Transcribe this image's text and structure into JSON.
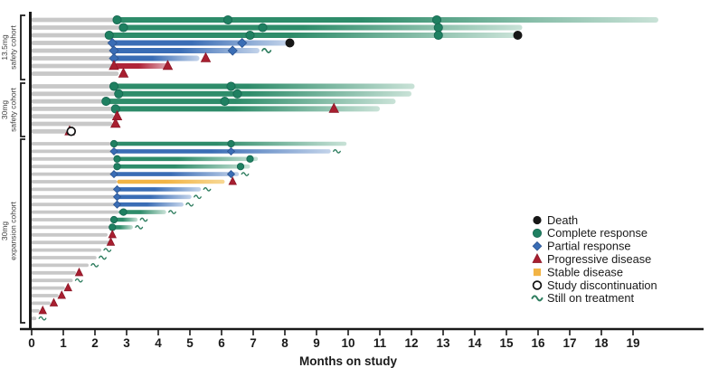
{
  "chart_data": {
    "type": "swimmer",
    "title": "",
    "xlabel": "Months on study",
    "x_ticks": [
      0,
      1,
      2,
      3,
      4,
      5,
      6,
      7,
      8,
      9,
      10,
      11,
      12,
      13,
      14,
      15,
      16,
      17,
      18,
      19
    ],
    "xlim": [
      0,
      20
    ],
    "grid": false,
    "legend_position": "bottom-right",
    "legend": [
      {
        "key": "death",
        "label": "Death"
      },
      {
        "key": "cr",
        "label": "Complete response"
      },
      {
        "key": "pr",
        "label": "Partial response"
      },
      {
        "key": "pd",
        "label": "Progressive disease"
      },
      {
        "key": "sd",
        "label": "Stable disease"
      },
      {
        "key": "disc",
        "label": "Study discontinuation"
      },
      {
        "key": "sq",
        "label": "Still on treatment"
      }
    ],
    "colors": {
      "complete_response": "#2E8C6A",
      "complete_response_fade": "#C9E2D7",
      "partial_response": "#3A6DB5",
      "partial_response_fade": "#C3D3EA",
      "progressive_disease": "#B02438",
      "progressive_disease_fade": "#E3B3BC",
      "stable_disease": "#F2B445",
      "stable_disease_fade": "#F7D894",
      "death": "#171717",
      "pretreatment": "#C8C8C8",
      "marker_cr": "#1F8061",
      "marker_pr": "#3A6DB5",
      "marker_pd": "#A81F30",
      "squiggle": "#2E7D5F",
      "axis": "#1A1A1A"
    },
    "cohorts": [
      {
        "label_line1": "13.5mg",
        "label_line2": "safety cohort",
        "patients": [
          {
            "pre": 2.7,
            "bar": "cr",
            "end": 19.8,
            "events": [
              [
                2.7,
                "cr"
              ],
              [
                6.2,
                "cr"
              ],
              [
                12.8,
                "cr"
              ]
            ],
            "eol": null
          },
          {
            "pre": 2.9,
            "bar": "cr",
            "end": 15.5,
            "events": [
              [
                2.9,
                "cr"
              ],
              [
                7.3,
                "cr"
              ],
              [
                12.85,
                "cr"
              ]
            ],
            "eol": null
          },
          {
            "pre": 2.45,
            "bar": "cr",
            "end": 15.3,
            "events": [
              [
                2.45,
                "cr"
              ],
              [
                6.9,
                "cr"
              ],
              [
                12.85,
                "cr"
              ]
            ],
            "eol": "death"
          },
          {
            "pre": 2.55,
            "bar": "pr",
            "end": 8.1,
            "events": [
              [
                2.55,
                "pr"
              ],
              [
                6.65,
                "pr"
              ]
            ],
            "eol": "death"
          },
          {
            "pre": 2.6,
            "bar": "pr",
            "end": 7.2,
            "events": [
              [
                2.6,
                "pr"
              ],
              [
                6.35,
                "pr"
              ]
            ],
            "eol": "sq"
          },
          {
            "pre": 2.6,
            "bar": "pr",
            "end": 5.3,
            "events": [
              [
                2.6,
                "pr"
              ],
              [
                5.5,
                "pd"
              ]
            ],
            "eol": null
          },
          {
            "pre": 2.6,
            "bar": "pd",
            "end": 4.35,
            "events": [
              [
                2.6,
                "pd"
              ],
              [
                4.3,
                "pd"
              ]
            ],
            "eol": null
          },
          {
            "pre": 2.75,
            "bar": null,
            "end": null,
            "events": [
              [
                2.9,
                "pd"
              ]
            ],
            "eol": null
          }
        ]
      },
      {
        "label_line1": "30mg",
        "label_line2": "safety cohort",
        "patients": [
          {
            "pre": 2.5,
            "bar": "cr",
            "end": 12.1,
            "events": [
              [
                2.6,
                "cr"
              ],
              [
                6.3,
                "cr"
              ]
            ],
            "eol": null
          },
          {
            "pre": 2.65,
            "bar": "cr",
            "end": 12.0,
            "events": [
              [
                2.75,
                "cr"
              ],
              [
                6.5,
                "cr"
              ]
            ],
            "eol": null
          },
          {
            "pre": 2.3,
            "bar": "cr",
            "end": 11.5,
            "events": [
              [
                2.35,
                "cr"
              ],
              [
                6.1,
                "cr"
              ]
            ],
            "eol": null
          },
          {
            "pre": 2.6,
            "bar": "cr",
            "end": 11.0,
            "events": [
              [
                2.65,
                "cr"
              ],
              [
                9.55,
                "pd"
              ]
            ],
            "eol": null
          },
          {
            "pre": 2.6,
            "bar": null,
            "end": null,
            "events": [
              [
                2.7,
                "pd"
              ]
            ],
            "eol": null
          },
          {
            "pre": 2.55,
            "bar": null,
            "end": null,
            "events": [
              [
                2.65,
                "pd"
              ]
            ],
            "eol": null
          },
          {
            "pre": 1.1,
            "bar": null,
            "end": null,
            "events": [
              [
                1.2,
                "pd"
              ],
              [
                1.25,
                "disc"
              ]
            ],
            "eol": null
          }
        ]
      },
      {
        "label_line1": "30mg",
        "label_line2": "expansion cohort",
        "patients": [
          {
            "pre": 2.5,
            "bar": "cr",
            "end": 9.95,
            "events": [
              [
                2.6,
                "cr"
              ],
              [
                6.3,
                "cr"
              ]
            ],
            "eol": null
          },
          {
            "pre": 2.6,
            "bar": "pr",
            "end": 9.45,
            "events": [
              [
                2.6,
                "pr"
              ],
              [
                6.3,
                "pr"
              ]
            ],
            "eol": "sq"
          },
          {
            "pre": 2.6,
            "bar": "cr",
            "end": 7.15,
            "events": [
              [
                2.7,
                "cr"
              ],
              [
                6.9,
                "cr"
              ]
            ],
            "eol": null
          },
          {
            "pre": 2.6,
            "bar": "cr",
            "end": 6.9,
            "events": [
              [
                2.7,
                "cr"
              ],
              [
                6.6,
                "cr"
              ]
            ],
            "eol": null
          },
          {
            "pre": 2.6,
            "bar": "pr",
            "end": 6.55,
            "events": [
              [
                2.6,
                "pr"
              ],
              [
                6.3,
                "pr"
              ]
            ],
            "eol": "sq"
          },
          {
            "pre": 2.7,
            "bar": "sd",
            "end": 6.1,
            "events": [
              [
                6.35,
                "pd"
              ]
            ],
            "eol": null
          },
          {
            "pre": 2.7,
            "bar": "pr",
            "end": 5.35,
            "events": [
              [
                2.7,
                "pr"
              ]
            ],
            "eol": "sq"
          },
          {
            "pre": 2.7,
            "bar": "pr",
            "end": 5.05,
            "events": [
              [
                2.7,
                "pr"
              ]
            ],
            "eol": "sq"
          },
          {
            "pre": 2.7,
            "bar": "pr",
            "end": 4.8,
            "events": [
              [
                2.7,
                "pr"
              ]
            ],
            "eol": "sq"
          },
          {
            "pre": 2.75,
            "bar": "cr",
            "end": 4.25,
            "events": [
              [
                2.9,
                "cr"
              ]
            ],
            "eol": "sq"
          },
          {
            "pre": 2.5,
            "bar": "cr",
            "end": 3.35,
            "events": [
              [
                2.6,
                "cr"
              ]
            ],
            "eol": "sq"
          },
          {
            "pre": 2.45,
            "bar": "cr",
            "end": 3.2,
            "events": [
              [
                2.55,
                "cr"
              ]
            ],
            "eol": "sq"
          },
          {
            "pre": 2.4,
            "bar": null,
            "end": null,
            "events": [
              [
                2.55,
                "pd"
              ]
            ],
            "eol": null
          },
          {
            "pre": 2.45,
            "bar": null,
            "end": null,
            "events": [
              [
                2.5,
                "pd"
              ]
            ],
            "eol": null
          },
          {
            "pre": 2.2,
            "bar": null,
            "end": null,
            "events": [],
            "eol": "sq"
          },
          {
            "pre": 2.05,
            "bar": null,
            "end": null,
            "events": [],
            "eol": "sq"
          },
          {
            "pre": 1.8,
            "bar": null,
            "end": null,
            "events": [],
            "eol": "sq"
          },
          {
            "pre": 1.4,
            "bar": null,
            "end": null,
            "events": [
              [
                1.5,
                "pd"
              ]
            ],
            "eol": null
          },
          {
            "pre": 1.3,
            "bar": null,
            "end": null,
            "events": [],
            "eol": "sq"
          },
          {
            "pre": 1.05,
            "bar": null,
            "end": null,
            "events": [
              [
                1.15,
                "pd"
              ]
            ],
            "eol": null
          },
          {
            "pre": 0.85,
            "bar": null,
            "end": null,
            "events": [
              [
                0.95,
                "pd"
              ]
            ],
            "eol": null
          },
          {
            "pre": 0.6,
            "bar": null,
            "end": null,
            "events": [
              [
                0.7,
                "pd"
              ]
            ],
            "eol": null
          },
          {
            "pre": 0.25,
            "bar": null,
            "end": null,
            "events": [
              [
                0.35,
                "pd"
              ]
            ],
            "eol": null
          },
          {
            "pre": 0.15,
            "bar": null,
            "end": null,
            "events": [],
            "eol": "sq"
          }
        ]
      }
    ]
  }
}
